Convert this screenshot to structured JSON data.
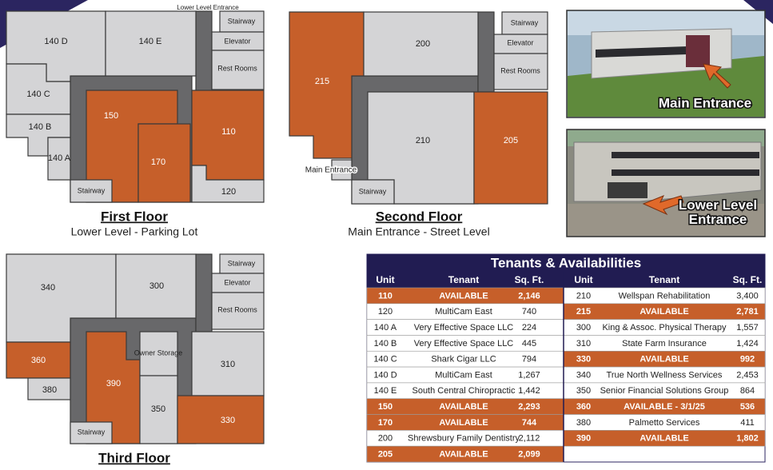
{
  "floors": [
    {
      "title": "First Floor",
      "subtitle": "Lower Level - Parking Lot",
      "rooms": [
        "140 D",
        "140 E",
        "140 C",
        "140 B",
        "140 A",
        "150",
        "170",
        "110",
        "120",
        "Stairway",
        "Stairway",
        "Elevator",
        "Rest Rooms",
        "Lower Level Entrance"
      ]
    },
    {
      "title": "Second Floor",
      "subtitle": "Main Entrance - Street Level",
      "rooms": [
        "215",
        "200",
        "210",
        "205",
        "Stairway",
        "Stairway",
        "Elevator",
        "Rest Rooms",
        "Main Entrance"
      ]
    },
    {
      "title": "Third Floor",
      "rooms": [
        "340",
        "300",
        "360",
        "380",
        "390",
        "Owner Storage",
        "350",
        "310",
        "330",
        "Stairway",
        "Stairway",
        "Elevator",
        "Rest Rooms"
      ]
    }
  ],
  "photos": [
    {
      "label": "Main Entrance"
    },
    {
      "label": "Lower Level Entrance"
    }
  ],
  "table": {
    "title": "Tenants & Availabilities",
    "header": [
      "Unit",
      "Tenant",
      "Sq. Ft.",
      "Unit",
      "Tenant",
      "Sq. Ft."
    ],
    "left_rows": [
      [
        "110",
        "AVAILABLE",
        "2,146"
      ],
      [
        "120",
        "MultiCam East",
        "740"
      ],
      [
        "140 A",
        "Very Effective Space LLC",
        "224"
      ],
      [
        "140 B",
        "Very Effective Space LLC",
        "445"
      ],
      [
        "140 C",
        "Shark Cigar LLC",
        "794"
      ],
      [
        "140 D",
        "MultiCam East",
        "1,267"
      ],
      [
        "140 E",
        "South Central Chiropractic",
        "1,442"
      ],
      [
        "150",
        "AVAILABLE",
        "2,293"
      ],
      [
        "170",
        "AVAILABLE",
        "744"
      ],
      [
        "200",
        "Shrewsbury Family Dentistry",
        "2,112"
      ],
      [
        "205",
        "AVAILABLE",
        "2,099"
      ]
    ],
    "right_rows": [
      [
        "210",
        "Wellspan Rehabilitation",
        "3,400"
      ],
      [
        "215",
        "AVAILABLE",
        "2,781"
      ],
      [
        "300",
        "King & Assoc. Physical Therapy",
        "1,557"
      ],
      [
        "310",
        "State Farm Insurance",
        "1,424"
      ],
      [
        "330",
        "AVAILABLE",
        "992"
      ],
      [
        "340",
        "True North Wellness Services",
        "2,453"
      ],
      [
        "350",
        "Senior Financial Solutions Group",
        "864"
      ],
      [
        "360",
        "AVAILABLE - 3/1/25",
        "536"
      ],
      [
        "380",
        "Palmetto Services",
        "411"
      ],
      [
        "390",
        "AVAILABLE",
        "1,802"
      ]
    ]
  }
}
